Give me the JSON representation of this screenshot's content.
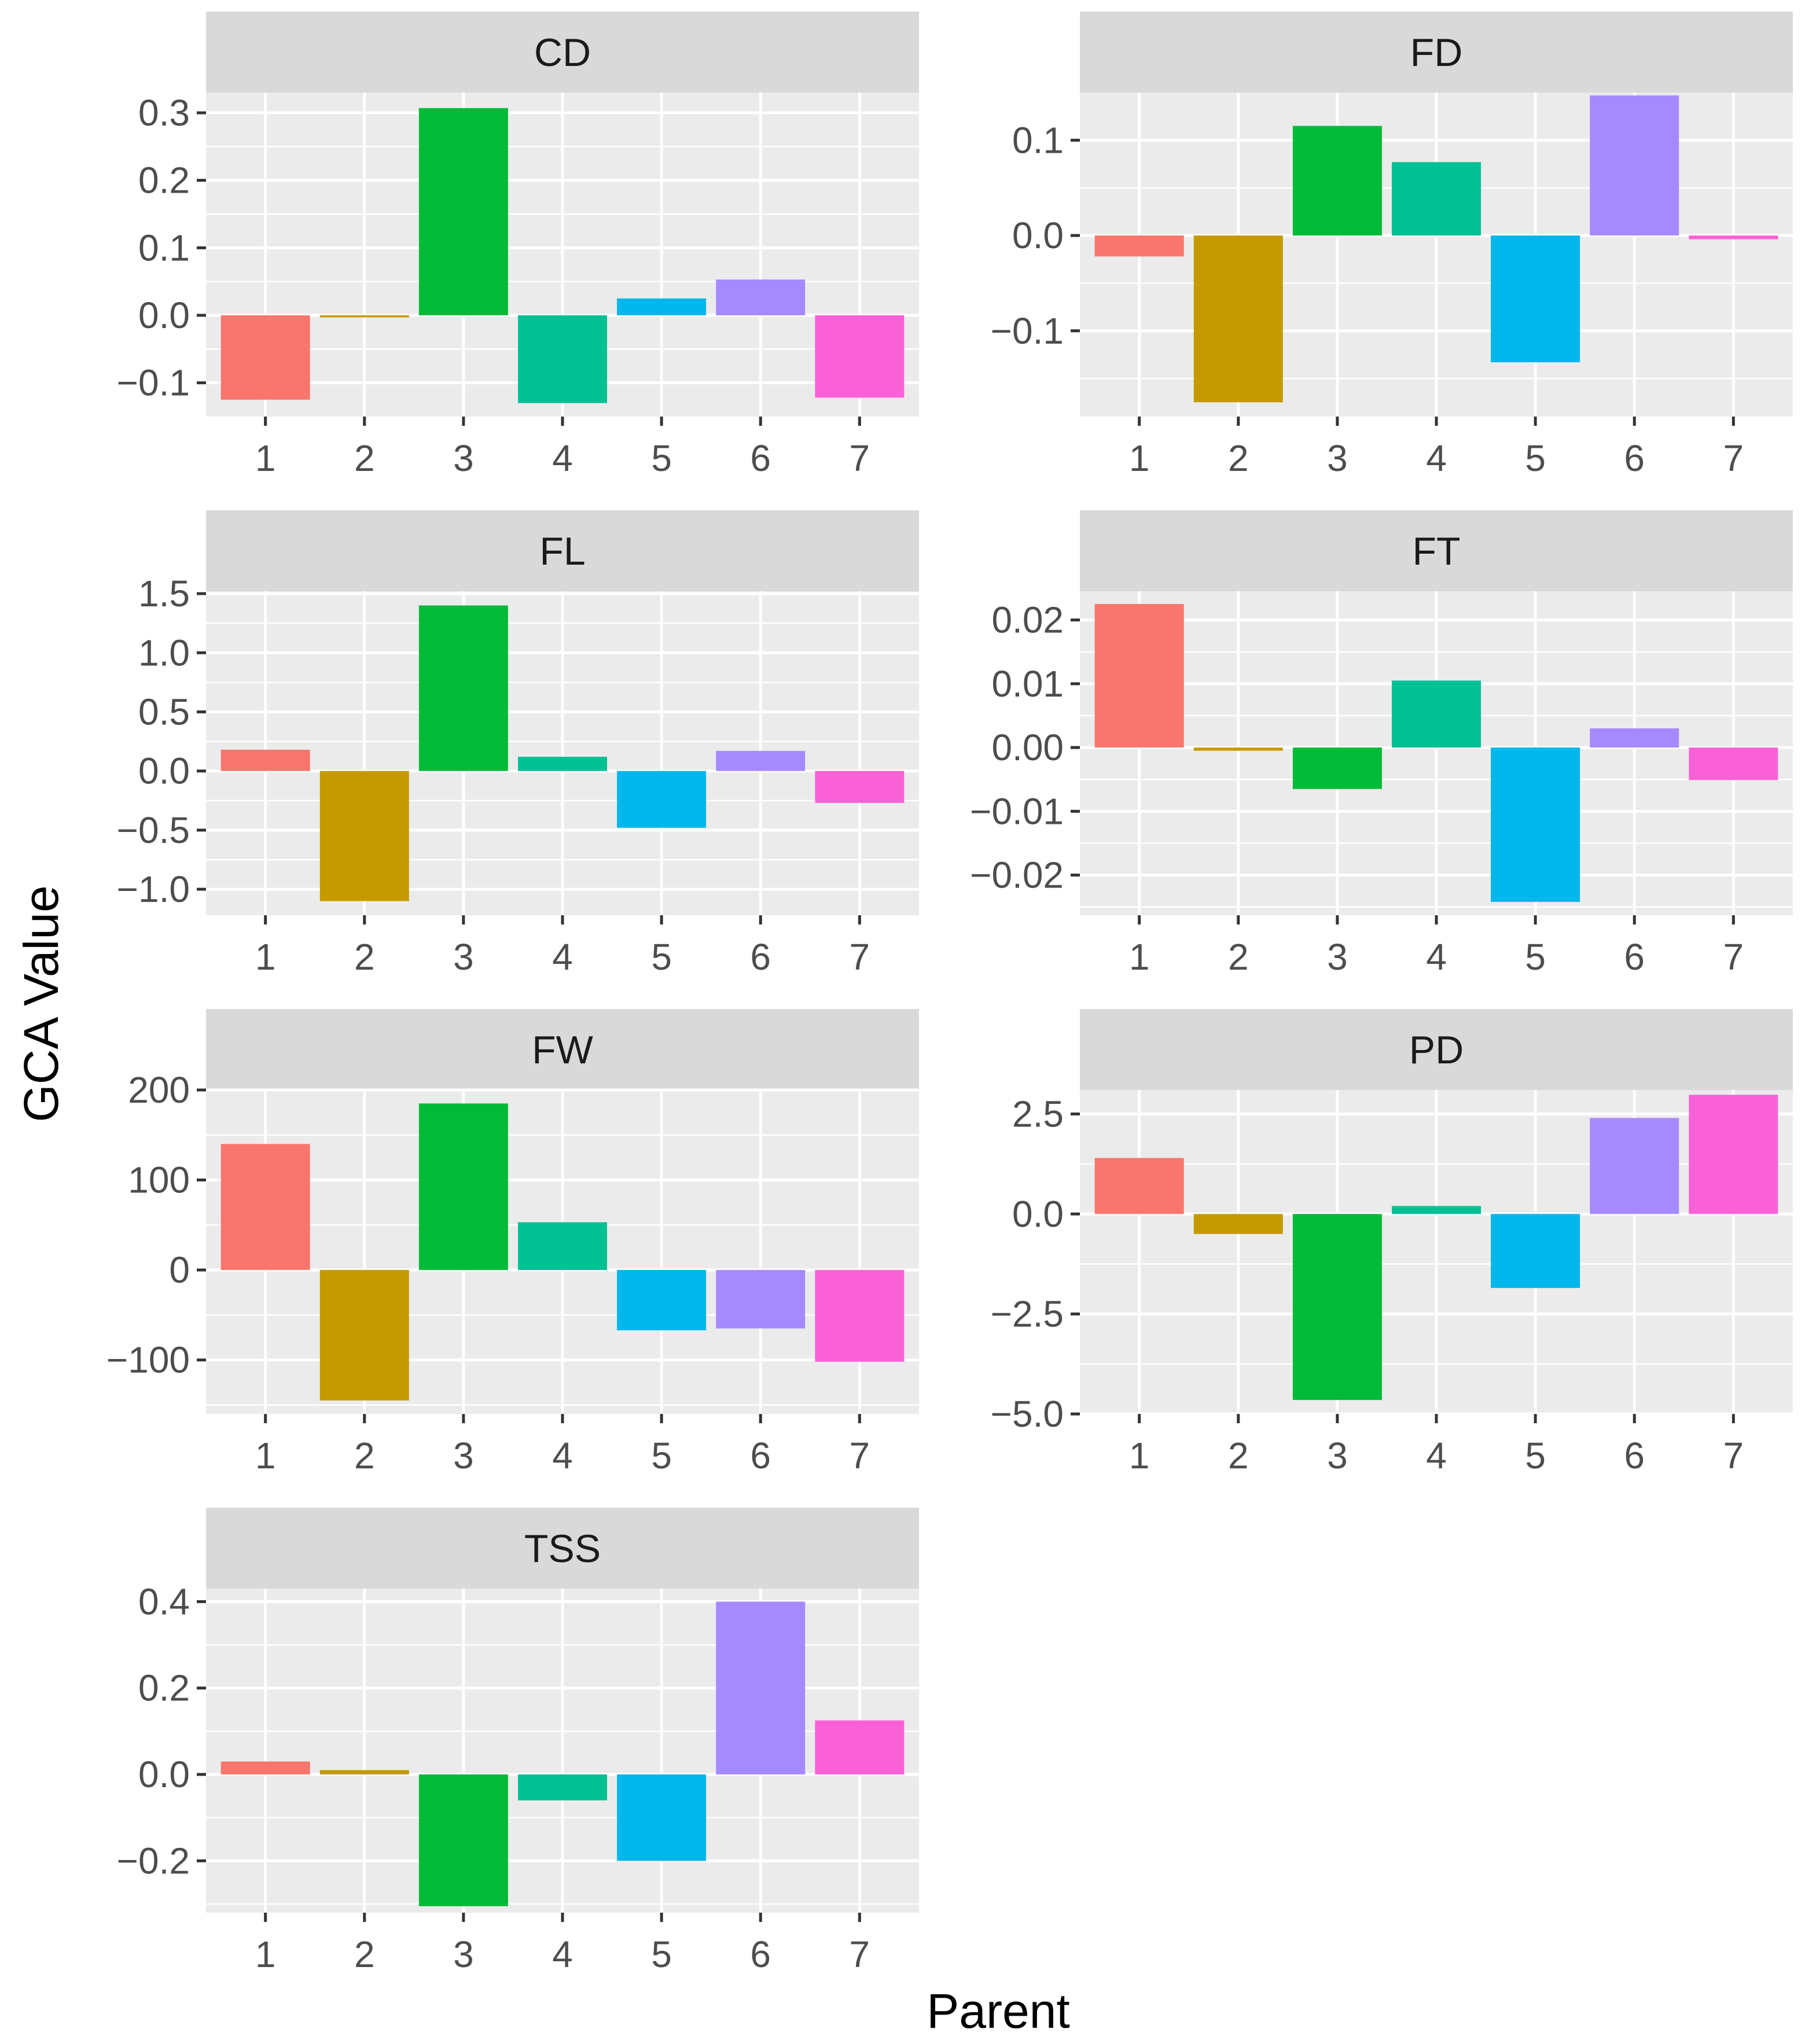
{
  "chart_data": {
    "type": "bar",
    "xlabel": "Parent",
    "ylabel": "GCA Value",
    "categories": [
      "1",
      "2",
      "3",
      "4",
      "5",
      "6",
      "7"
    ],
    "colors": [
      "#F8766D",
      "#C49A00",
      "#00BA38",
      "#00C094",
      "#00B6EB",
      "#A58AFF",
      "#FB61D7"
    ],
    "panel_colors": {
      "plot_bg": "#EBEBEB",
      "grid": "#FFFFFF",
      "strip_bg": "#D9D9D9"
    },
    "grid": true,
    "legend": "none",
    "facets": [
      {
        "name": "CD",
        "values": [
          -0.125,
          -0.003,
          0.307,
          -0.13,
          0.025,
          0.053,
          -0.122
        ],
        "ylim": [
          -0.15,
          0.33
        ],
        "yticks": [
          -0.1,
          0.0,
          0.1,
          0.2,
          0.3
        ],
        "ytick_labels": [
          "−0.1",
          "0.0",
          "0.1",
          "0.2",
          "0.3"
        ]
      },
      {
        "name": "FD",
        "values": [
          -0.022,
          -0.175,
          0.115,
          0.077,
          -0.133,
          0.147,
          -0.004
        ],
        "ylim": [
          -0.19,
          0.15
        ],
        "yticks": [
          -0.1,
          0.0,
          0.1
        ],
        "ytick_labels": [
          "−0.1",
          "0.0",
          "0.1"
        ]
      },
      {
        "name": "FL",
        "values": [
          0.18,
          -1.1,
          1.4,
          0.12,
          -0.48,
          0.17,
          -0.27
        ],
        "ylim": [
          -1.22,
          1.52
        ],
        "yticks": [
          -1.0,
          -0.5,
          0.0,
          0.5,
          1.0,
          1.5
        ],
        "ytick_labels": [
          "−1.0",
          "−0.5",
          "0.0",
          "0.5",
          "1.0",
          "1.5"
        ]
      },
      {
        "name": "FT",
        "values": [
          0.0225,
          -0.0005,
          -0.0065,
          0.0105,
          -0.0242,
          0.003,
          -0.0051
        ],
        "ylim": [
          -0.0263,
          0.0245
        ],
        "yticks": [
          -0.02,
          -0.01,
          0.0,
          0.01,
          0.02
        ],
        "ytick_labels": [
          "−0.02",
          "−0.01",
          "0.00",
          "0.01",
          "0.02"
        ]
      },
      {
        "name": "FW",
        "values": [
          140,
          -145,
          185,
          53,
          -67,
          -65,
          -102
        ],
        "ylim": [
          -160,
          200
        ],
        "yticks": [
          -100,
          0,
          100,
          200
        ],
        "ytick_labels": [
          "−100",
          "0",
          "100",
          "200"
        ]
      },
      {
        "name": "PD",
        "values": [
          1.4,
          -0.5,
          -4.65,
          0.2,
          -1.85,
          2.4,
          2.98
        ],
        "ylim": [
          -5.0,
          3.1
        ],
        "yticks": [
          -5.0,
          -2.5,
          0.0,
          2.5
        ],
        "ytick_labels": [
          "−5.0",
          "−2.5",
          "0.0",
          "2.5"
        ]
      },
      {
        "name": "TSS",
        "values": [
          0.03,
          0.01,
          -0.305,
          -0.06,
          -0.2,
          0.4,
          0.125
        ],
        "ylim": [
          -0.32,
          0.43
        ],
        "yticks": [
          -0.2,
          0.0,
          0.2,
          0.4
        ],
        "ytick_labels": [
          "−0.2",
          "0.0",
          "0.2",
          "0.4"
        ]
      }
    ]
  }
}
